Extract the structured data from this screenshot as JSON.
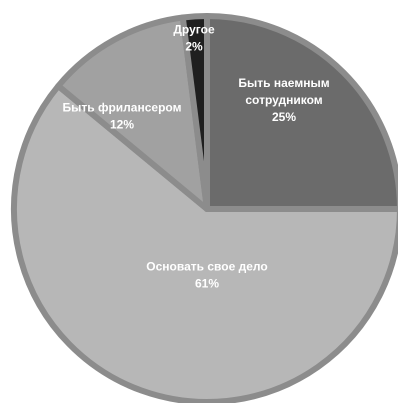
{
  "chart_data": {
    "type": "pie",
    "title": "",
    "slices": [
      {
        "label": "Быть наемным сотрудником",
        "label_lines": [
          "Быть наемным",
          "сотрудником"
        ],
        "value": 25,
        "value_label": "25%",
        "color": "#6b6b6b"
      },
      {
        "label": "Основать свое дело",
        "label_lines": [
          "Основать свое дело"
        ],
        "value": 61,
        "value_label": "61%",
        "color": "#b7b7b7"
      },
      {
        "label": "Быть фрилансером",
        "label_lines": [
          "Быть фрилансером"
        ],
        "value": 12,
        "value_label": "12%",
        "color": "#a1a1a1"
      },
      {
        "label": "Другое",
        "label_lines": [
          "Другое"
        ],
        "value": 2,
        "value_label": "2%",
        "color": "#1f1f1f"
      }
    ],
    "start_angle_deg": 0,
    "direction": "clockwise",
    "slice_border_color": "#8c8c8c",
    "legend": "none",
    "label_position": "inside"
  }
}
